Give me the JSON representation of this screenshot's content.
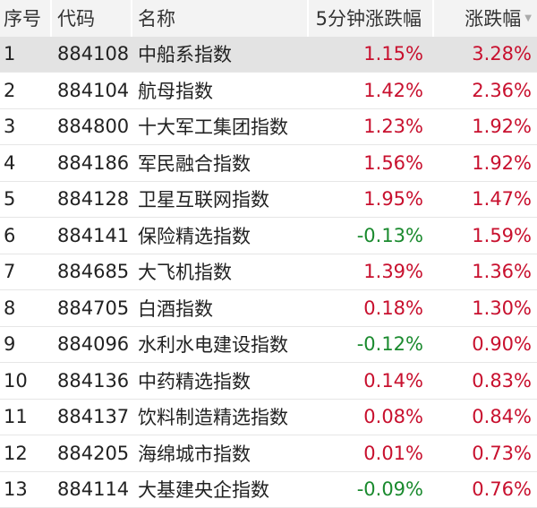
{
  "headers": [
    "序号",
    "代码",
    "名称",
    "5分钟涨跌幅",
    "涨跌幅"
  ],
  "sort_icon": "sort-desc-icon",
  "colors": {
    "up": "#c8102e",
    "down": "#1a8a2e",
    "header_bg": "#f3f3f3",
    "selected_bg": "#e3e3e3"
  },
  "rows": [
    {
      "no": "1",
      "code": "884108",
      "name": "中船系指数",
      "chg5": "1.15%",
      "chg": "3.28%"
    },
    {
      "no": "2",
      "code": "884104",
      "name": "航母指数",
      "chg5": "1.42%",
      "chg": "2.36%"
    },
    {
      "no": "3",
      "code": "884800",
      "name": "十大军工集团指数",
      "chg5": "1.23%",
      "chg": "1.92%"
    },
    {
      "no": "4",
      "code": "884186",
      "name": "军民融合指数",
      "chg5": "1.56%",
      "chg": "1.92%"
    },
    {
      "no": "5",
      "code": "884128",
      "name": "卫星互联网指数",
      "chg5": "1.95%",
      "chg": "1.47%"
    },
    {
      "no": "6",
      "code": "884141",
      "name": "保险精选指数",
      "chg5": "-0.13%",
      "chg": "1.59%"
    },
    {
      "no": "7",
      "code": "884685",
      "name": "大飞机指数",
      "chg5": "1.39%",
      "chg": "1.36%"
    },
    {
      "no": "8",
      "code": "884705",
      "name": "白酒指数",
      "chg5": "0.18%",
      "chg": "1.30%"
    },
    {
      "no": "9",
      "code": "884096",
      "name": "水利水电建设指数",
      "chg5": "-0.12%",
      "chg": "0.90%"
    },
    {
      "no": "10",
      "code": "884136",
      "name": "中药精选指数",
      "chg5": "0.14%",
      "chg": "0.83%"
    },
    {
      "no": "11",
      "code": "884137",
      "name": "饮料制造精选指数",
      "chg5": "0.08%",
      "chg": "0.84%"
    },
    {
      "no": "12",
      "code": "884205",
      "name": "海绵城市指数",
      "chg5": "0.01%",
      "chg": "0.73%"
    },
    {
      "no": "13",
      "code": "884114",
      "name": "大基建央企指数",
      "chg5": "-0.09%",
      "chg": "0.76%"
    }
  ]
}
